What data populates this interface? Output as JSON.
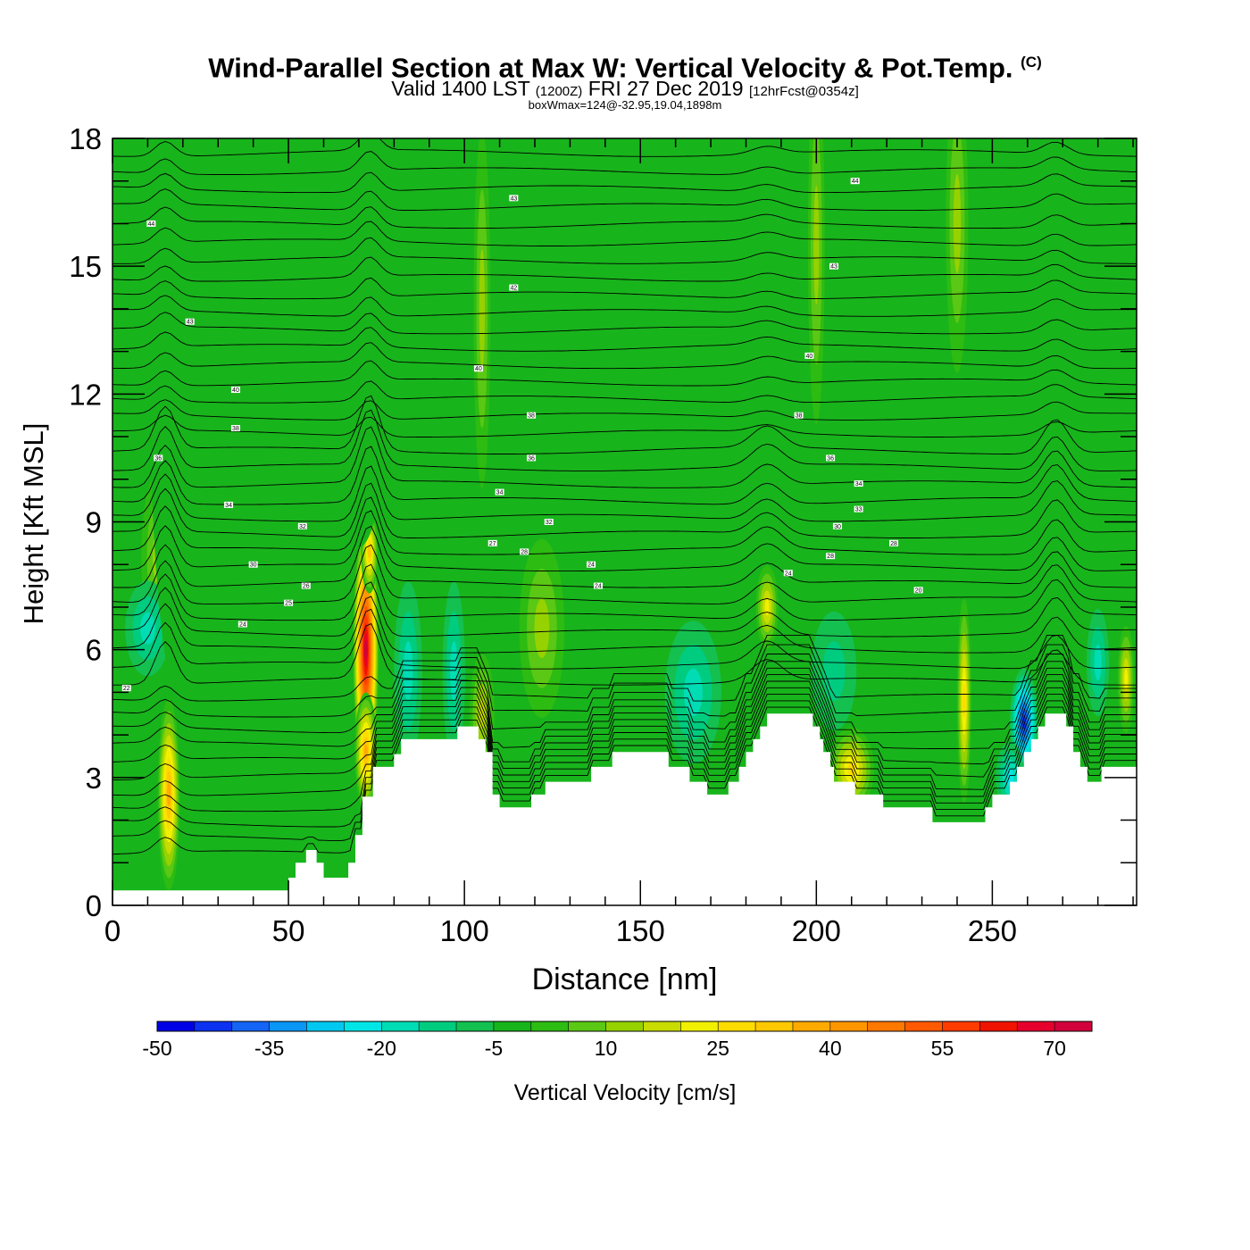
{
  "header": {
    "title": "Wind-Parallel Section at Max W: Vertical Velocity & Pot.Temp.",
    "copyright": "(C)",
    "subtitle_a": "Valid 1400 LST",
    "subtitle_b": "(1200Z)",
    "subtitle_c": "FRI 27 Dec 2019",
    "subtitle_d": "[12hrFcst@0354z]",
    "box_info": "boxWmax=124@-32.95,19.04,1898m"
  },
  "chart_data": {
    "type": "heatmap",
    "xlabel": "Distance [nm]",
    "ylabel": "Height [Kft MSL]",
    "xlim": [
      0,
      291
    ],
    "ylim": [
      0,
      18
    ],
    "x_ticks": [
      0,
      50,
      100,
      150,
      200,
      250
    ],
    "y_ticks": [
      0,
      3,
      6,
      9,
      12,
      15,
      18
    ],
    "background_field": "Vertical Velocity",
    "background_value_cm_s": -5,
    "terrain_kft": [
      [
        0,
        0.35
      ],
      [
        50,
        0.35
      ],
      [
        50,
        0.65
      ],
      [
        52,
        0.65
      ],
      [
        52,
        1.0
      ],
      [
        55,
        1.0
      ],
      [
        55,
        1.3
      ],
      [
        58,
        1.3
      ],
      [
        58,
        1.0
      ],
      [
        60,
        1.0
      ],
      [
        60,
        0.65
      ],
      [
        67,
        0.65
      ],
      [
        67,
        1.0
      ],
      [
        69,
        1.0
      ],
      [
        69,
        1.65
      ],
      [
        71,
        1.65
      ],
      [
        71,
        2.55
      ],
      [
        74,
        2.55
      ],
      [
        74,
        3.25
      ],
      [
        80,
        3.25
      ],
      [
        80,
        3.55
      ],
      [
        82,
        3.55
      ],
      [
        82,
        3.9
      ],
      [
        98,
        3.9
      ],
      [
        98,
        4.2
      ],
      [
        104,
        4.2
      ],
      [
        104,
        3.9
      ],
      [
        106,
        3.9
      ],
      [
        106,
        3.6
      ],
      [
        108,
        3.6
      ],
      [
        108,
        2.6
      ],
      [
        110,
        2.6
      ],
      [
        110,
        2.3
      ],
      [
        119,
        2.3
      ],
      [
        119,
        2.6
      ],
      [
        123,
        2.6
      ],
      [
        123,
        2.9
      ],
      [
        136,
        2.9
      ],
      [
        136,
        3.25
      ],
      [
        142,
        3.25
      ],
      [
        142,
        3.6
      ],
      [
        158,
        3.6
      ],
      [
        158,
        3.25
      ],
      [
        164,
        3.25
      ],
      [
        164,
        2.9
      ],
      [
        169,
        2.9
      ],
      [
        169,
        2.6
      ],
      [
        175,
        2.6
      ],
      [
        175,
        2.9
      ],
      [
        178,
        2.9
      ],
      [
        178,
        3.25
      ],
      [
        180,
        3.25
      ],
      [
        180,
        3.6
      ],
      [
        182,
        3.6
      ],
      [
        182,
        3.9
      ],
      [
        184,
        3.9
      ],
      [
        184,
        4.2
      ],
      [
        186,
        4.2
      ],
      [
        186,
        4.5
      ],
      [
        199,
        4.5
      ],
      [
        199,
        4.2
      ],
      [
        201,
        4.2
      ],
      [
        201,
        3.9
      ],
      [
        202,
        3.9
      ],
      [
        202,
        3.6
      ],
      [
        204,
        3.6
      ],
      [
        204,
        3.25
      ],
      [
        205,
        3.25
      ],
      [
        205,
        2.9
      ],
      [
        211,
        2.9
      ],
      [
        211,
        2.6
      ],
      [
        219,
        2.6
      ],
      [
        219,
        2.3
      ],
      [
        233,
        2.3
      ],
      [
        233,
        1.95
      ],
      [
        248,
        1.95
      ],
      [
        248,
        2.3
      ],
      [
        250,
        2.3
      ],
      [
        250,
        2.6
      ],
      [
        255,
        2.6
      ],
      [
        255,
        2.9
      ],
      [
        257,
        2.9
      ],
      [
        257,
        3.25
      ],
      [
        259,
        3.25
      ],
      [
        259,
        3.6
      ],
      [
        261,
        3.6
      ],
      [
        261,
        3.9
      ],
      [
        263,
        3.9
      ],
      [
        263,
        4.2
      ],
      [
        265,
        4.2
      ],
      [
        265,
        4.5
      ],
      [
        271,
        4.5
      ],
      [
        271,
        4.2
      ],
      [
        273,
        4.2
      ],
      [
        273,
        3.6
      ],
      [
        275,
        3.6
      ],
      [
        275,
        3.25
      ],
      [
        277,
        3.25
      ],
      [
        277,
        2.9
      ],
      [
        281,
        2.9
      ],
      [
        281,
        3.25
      ],
      [
        291,
        3.25
      ]
    ],
    "velocity_features": [
      {
        "x": 16,
        "y": 2.6,
        "sx": 2.0,
        "sy": 1.6,
        "v": 35
      },
      {
        "x": 13,
        "y": 8.2,
        "sx": 3.0,
        "sy": 1.4,
        "v": 10
      },
      {
        "x": 10,
        "y": 6.5,
        "sx": 4.0,
        "sy": 0.8,
        "v": -20
      },
      {
        "x": 72,
        "y": 6.0,
        "sx": 2.3,
        "sy": 2.2,
        "v": 72
      },
      {
        "x": 72,
        "y": 3.6,
        "sx": 2.0,
        "sy": 1.0,
        "v": 35
      },
      {
        "x": 73,
        "y": 8.3,
        "sx": 1.5,
        "sy": 0.7,
        "v": 30
      },
      {
        "x": 84,
        "y": 5.5,
        "sx": 2.5,
        "sy": 1.5,
        "v": -20
      },
      {
        "x": 97,
        "y": 5.5,
        "sx": 2.0,
        "sy": 1.5,
        "v": -20
      },
      {
        "x": 105,
        "y": 4.5,
        "sx": 2.2,
        "sy": 1.0,
        "v": 15
      },
      {
        "x": 122,
        "y": 6.5,
        "sx": 4.0,
        "sy": 1.5,
        "v": 10
      },
      {
        "x": 165,
        "y": 5.0,
        "sx": 5.0,
        "sy": 1.2,
        "v": -20
      },
      {
        "x": 186,
        "y": 7.0,
        "sx": 2.0,
        "sy": 0.7,
        "v": 20
      },
      {
        "x": 210,
        "y": 3.2,
        "sx": 4.0,
        "sy": 0.7,
        "v": 25
      },
      {
        "x": 205,
        "y": 5.5,
        "sx": 4.0,
        "sy": 1.0,
        "v": -15
      },
      {
        "x": 242,
        "y": 4.8,
        "sx": 1.5,
        "sy": 2.0,
        "v": 28
      },
      {
        "x": 259,
        "y": 4.3,
        "sx": 2.5,
        "sy": 0.9,
        "v": -45
      },
      {
        "x": 255,
        "y": 3.0,
        "sx": 2.5,
        "sy": 0.6,
        "v": -25
      },
      {
        "x": 280,
        "y": 5.7,
        "sx": 2.0,
        "sy": 0.9,
        "v": -20
      },
      {
        "x": 288,
        "y": 5.3,
        "sx": 1.5,
        "sy": 0.9,
        "v": 20
      },
      {
        "x": 20,
        "y": 13.0,
        "sx": 6.0,
        "sy": 6.0,
        "v": -5
      },
      {
        "x": 105,
        "y": 14.0,
        "sx": 1.5,
        "sy": 3.0,
        "v": 10
      },
      {
        "x": 200,
        "y": 15.5,
        "sx": 1.5,
        "sy": 3.0,
        "v": 10
      },
      {
        "x": 240,
        "y": 16.0,
        "sx": 2.0,
        "sy": 2.5,
        "v": 10
      },
      {
        "x": 70,
        "y": 14.0,
        "sx": 6.0,
        "sy": 4.0,
        "v": -5
      }
    ],
    "isentropes": {
      "count": 46,
      "y0_kft": 1.2,
      "spacing_kft": 0.36
    },
    "contour_labels": [
      {
        "text": "44",
        "x": 11,
        "y": 16.0
      },
      {
        "text": "43",
        "x": 114,
        "y": 16.6
      },
      {
        "text": "44",
        "x": 211,
        "y": 17.0
      },
      {
        "text": "43",
        "x": 22,
        "y": 13.7
      },
      {
        "text": "42",
        "x": 114,
        "y": 14.5
      },
      {
        "text": "43",
        "x": 205,
        "y": 15.0
      },
      {
        "text": "40",
        "x": 35,
        "y": 12.1
      },
      {
        "text": "40",
        "x": 104,
        "y": 12.6
      },
      {
        "text": "40",
        "x": 198,
        "y": 12.9
      },
      {
        "text": "38",
        "x": 35,
        "y": 11.2
      },
      {
        "text": "38",
        "x": 119,
        "y": 11.5
      },
      {
        "text": "38",
        "x": 195,
        "y": 11.5
      },
      {
        "text": "36",
        "x": 13,
        "y": 10.5
      },
      {
        "text": "36",
        "x": 119,
        "y": 10.5
      },
      {
        "text": "36",
        "x": 204,
        "y": 10.5
      },
      {
        "text": "34",
        "x": 33,
        "y": 9.4
      },
      {
        "text": "34",
        "x": 110,
        "y": 9.7
      },
      {
        "text": "34",
        "x": 212,
        "y": 9.9
      },
      {
        "text": "33",
        "x": 212,
        "y": 9.3
      },
      {
        "text": "32",
        "x": 54,
        "y": 8.9
      },
      {
        "text": "32",
        "x": 124,
        "y": 9.0
      },
      {
        "text": "30",
        "x": 206,
        "y": 8.9
      },
      {
        "text": "30",
        "x": 40,
        "y": 8.0
      },
      {
        "text": "27",
        "x": 108,
        "y": 8.5
      },
      {
        "text": "28",
        "x": 117,
        "y": 8.3
      },
      {
        "text": "28",
        "x": 204,
        "y": 8.2
      },
      {
        "text": "28",
        "x": 222,
        "y": 8.5
      },
      {
        "text": "26",
        "x": 55,
        "y": 7.5
      },
      {
        "text": "24",
        "x": 136,
        "y": 8.0
      },
      {
        "text": "24",
        "x": 192,
        "y": 7.8
      },
      {
        "text": "24",
        "x": 138,
        "y": 7.5
      },
      {
        "text": "25",
        "x": 50,
        "y": 7.1
      },
      {
        "text": "24",
        "x": 37,
        "y": 6.6
      },
      {
        "text": "20",
        "x": 229,
        "y": 7.4
      },
      {
        "text": "22",
        "x": 4,
        "y": 5.1
      }
    ],
    "colorbar": {
      "label": "Vertical Velocity [cm/s]",
      "min": -50,
      "step": 5,
      "tick_labels": [
        "-50",
        "-35",
        "-20",
        "-5",
        "10",
        "25",
        "40",
        "55",
        "70"
      ],
      "colors": [
        "#0000e6",
        "#0a32f0",
        "#1464f5",
        "#0a96f5",
        "#00c8f0",
        "#00e6e6",
        "#00dcb4",
        "#00cc80",
        "#14c050",
        "#18b41c",
        "#2dbc12",
        "#5ac814",
        "#96d200",
        "#c8dc00",
        "#f0f000",
        "#ffdc00",
        "#ffc800",
        "#ffaa00",
        "#ff9600",
        "#ff7800",
        "#ff5a00",
        "#ff3c00",
        "#f01400",
        "#e6002d",
        "#d2003c"
      ]
    }
  }
}
